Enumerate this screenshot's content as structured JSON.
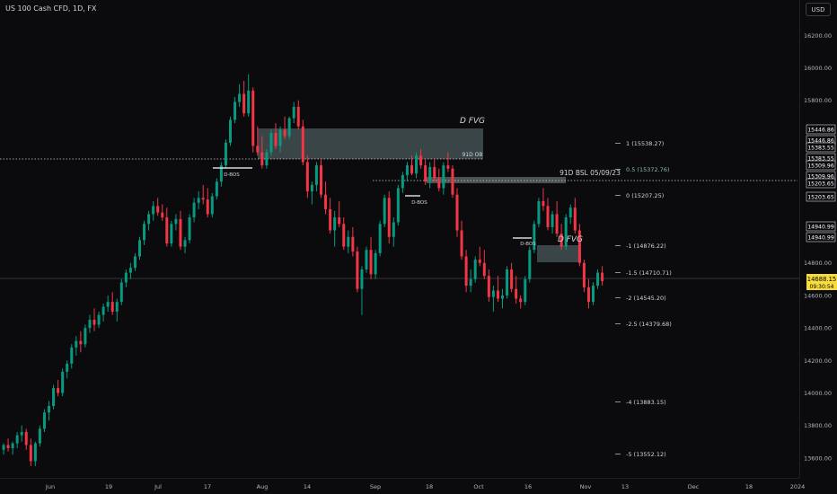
{
  "header": {
    "title": "US 100 Cash CFD, 1D, FX",
    "currency_button": "USD"
  },
  "chart_data": {
    "type": "candlestick",
    "ylim": [
      13500,
      16340
    ],
    "price_axis_ticks": [
      "16200.00",
      "16000.00",
      "15800.00",
      "14800.00",
      "14600.00",
      "14400.00",
      "14200.00",
      "14000.00",
      "13800.00",
      "13600.00"
    ],
    "time_axis_labels": [
      {
        "label": "Jun",
        "x": 0
      },
      {
        "label": "19",
        "x": 14
      },
      {
        "label": "Jul",
        "x": 24
      },
      {
        "label": "17",
        "x": 34
      },
      {
        "label": "Aug",
        "x": 45
      },
      {
        "label": "14",
        "x": 55
      },
      {
        "label": "Sep",
        "x": 67
      },
      {
        "label": "18",
        "x": 77
      },
      {
        "label": "Oct",
        "x": 86
      },
      {
        "label": "16",
        "x": 96
      },
      {
        "label": "Nov",
        "x": 108
      },
      {
        "label": "13",
        "x": 117
      },
      {
        "label": "Dec",
        "x": 127
      },
      {
        "label": "18",
        "x": 137
      },
      {
        "label": "2024",
        "x": 147
      }
    ],
    "candles": [
      [
        13650,
        13690,
        13620,
        13680
      ],
      [
        13680,
        13720,
        13640,
        13660
      ],
      [
        13660,
        13700,
        13620,
        13690
      ],
      [
        13690,
        13760,
        13660,
        13740
      ],
      [
        13740,
        13800,
        13700,
        13760
      ],
      [
        13760,
        13780,
        13650,
        13680
      ],
      [
        13680,
        13720,
        13550,
        13580
      ],
      [
        13580,
        13700,
        13550,
        13690
      ],
      [
        13690,
        13800,
        13670,
        13780
      ],
      [
        13780,
        13900,
        13760,
        13880
      ],
      [
        13880,
        13950,
        13830,
        13920
      ],
      [
        13920,
        14050,
        13900,
        14030
      ],
      [
        14030,
        14080,
        13980,
        14000
      ],
      [
        14000,
        14150,
        13980,
        14130
      ],
      [
        14130,
        14200,
        14090,
        14180
      ],
      [
        14180,
        14300,
        14150,
        14280
      ],
      [
        14280,
        14350,
        14230,
        14320
      ],
      [
        14320,
        14380,
        14250,
        14300
      ],
      [
        14300,
        14420,
        14280,
        14400
      ],
      [
        14400,
        14480,
        14370,
        14450
      ],
      [
        14450,
        14520,
        14380,
        14420
      ],
      [
        14420,
        14500,
        14400,
        14480
      ],
      [
        14480,
        14550,
        14440,
        14530
      ],
      [
        14530,
        14600,
        14500,
        14560
      ],
      [
        14560,
        14620,
        14480,
        14500
      ],
      [
        14500,
        14580,
        14440,
        14560
      ],
      [
        14560,
        14700,
        14540,
        14680
      ],
      [
        14680,
        14760,
        14650,
        14740
      ],
      [
        14740,
        14800,
        14700,
        14770
      ],
      [
        14770,
        14860,
        14750,
        14840
      ],
      [
        14840,
        14960,
        14820,
        14940
      ],
      [
        14940,
        15060,
        14910,
        15040
      ],
      [
        15040,
        15120,
        15000,
        15100
      ],
      [
        15100,
        15180,
        15060,
        15150
      ],
      [
        15150,
        15200,
        15090,
        15110
      ],
      [
        15110,
        15160,
        15060,
        15080
      ],
      [
        15080,
        15140,
        14900,
        14920
      ],
      [
        14920,
        15060,
        14900,
        15040
      ],
      [
        15040,
        15100,
        15000,
        15070
      ],
      [
        15070,
        15120,
        14880,
        14900
      ],
      [
        14900,
        14960,
        14860,
        14940
      ],
      [
        14940,
        15100,
        14920,
        15080
      ],
      [
        15080,
        15200,
        15050,
        15170
      ],
      [
        15170,
        15240,
        15130,
        15200
      ],
      [
        15200,
        15280,
        15160,
        15190
      ],
      [
        15190,
        15260,
        15080,
        15100
      ],
      [
        15100,
        15230,
        15080,
        15210
      ],
      [
        15210,
        15320,
        15190,
        15300
      ],
      [
        15300,
        15420,
        15270,
        15400
      ],
      [
        15400,
        15560,
        15380,
        15540
      ],
      [
        15540,
        15700,
        15520,
        15680
      ],
      [
        15680,
        15820,
        15660,
        15790
      ],
      [
        15790,
        15900,
        15760,
        15840
      ],
      [
        15840,
        15920,
        15700,
        15720
      ],
      [
        15720,
        15960,
        15700,
        15860
      ],
      [
        15860,
        15880,
        15480,
        15520
      ],
      [
        15520,
        15640,
        15460,
        15480
      ],
      [
        15480,
        15580,
        15380,
        15400
      ],
      [
        15400,
        15500,
        15380,
        15480
      ],
      [
        15480,
        15620,
        15460,
        15600
      ],
      [
        15600,
        15660,
        15500,
        15520
      ],
      [
        15520,
        15640,
        15480,
        15620
      ],
      [
        15620,
        15700,
        15560,
        15580
      ],
      [
        15580,
        15700,
        15560,
        15690
      ],
      [
        15690,
        15790,
        15660,
        15760
      ],
      [
        15760,
        15800,
        15620,
        15640
      ],
      [
        15640,
        15680,
        15400,
        15420
      ],
      [
        15420,
        15460,
        15200,
        15240
      ],
      [
        15240,
        15300,
        15160,
        15280
      ],
      [
        15280,
        15420,
        15240,
        15400
      ],
      [
        15400,
        15440,
        15200,
        15220
      ],
      [
        15220,
        15300,
        15100,
        15130
      ],
      [
        15130,
        15200,
        14980,
        15000
      ],
      [
        15000,
        15120,
        14900,
        15080
      ],
      [
        15080,
        15180,
        15020,
        15040
      ],
      [
        15040,
        15080,
        14880,
        14900
      ],
      [
        14900,
        15000,
        14860,
        14960
      ],
      [
        14960,
        15020,
        14840,
        14870
      ],
      [
        14870,
        14900,
        14620,
        14640
      ],
      [
        14640,
        14780,
        14480,
        14760
      ],
      [
        14760,
        14900,
        14740,
        14880
      ],
      [
        14880,
        14960,
        14700,
        14730
      ],
      [
        14730,
        14880,
        14700,
        14860
      ],
      [
        14860,
        15060,
        14840,
        15040
      ],
      [
        15040,
        15220,
        15020,
        15200
      ],
      [
        15200,
        15240,
        14920,
        14960
      ],
      [
        14960,
        15080,
        14900,
        15050
      ],
      [
        15050,
        15280,
        15030,
        15260
      ],
      [
        15260,
        15360,
        15230,
        15340
      ],
      [
        15340,
        15420,
        15300,
        15400
      ],
      [
        15400,
        15460,
        15340,
        15350
      ],
      [
        15350,
        15480,
        15320,
        15460
      ],
      [
        15460,
        15500,
        15380,
        15400
      ],
      [
        15400,
        15440,
        15280,
        15300
      ],
      [
        15300,
        15420,
        15260,
        15390
      ],
      [
        15390,
        15440,
        15300,
        15320
      ],
      [
        15320,
        15380,
        15240,
        15260
      ],
      [
        15260,
        15420,
        15220,
        15400
      ],
      [
        15400,
        15480,
        15360,
        15380
      ],
      [
        15380,
        15400,
        15200,
        15220
      ],
      [
        15220,
        15260,
        14960,
        15000
      ],
      [
        15000,
        15060,
        14820,
        14840
      ],
      [
        14840,
        14880,
        14620,
        14660
      ],
      [
        14660,
        14760,
        14620,
        14700
      ],
      [
        14700,
        14840,
        14680,
        14820
      ],
      [
        14820,
        14900,
        14780,
        14800
      ],
      [
        14800,
        14880,
        14700,
        14720
      ],
      [
        14720,
        14760,
        14560,
        14590
      ],
      [
        14590,
        14660,
        14500,
        14630
      ],
      [
        14630,
        14720,
        14560,
        14580
      ],
      [
        14580,
        14640,
        14520,
        14600
      ],
      [
        14600,
        14780,
        14580,
        14760
      ],
      [
        14760,
        14800,
        14620,
        14640
      ],
      [
        14640,
        14720,
        14550,
        14580
      ],
      [
        14580,
        14600,
        14520,
        14560
      ],
      [
        14560,
        14720,
        14540,
        14700
      ],
      [
        14700,
        14900,
        14680,
        14880
      ],
      [
        14880,
        15060,
        14860,
        15040
      ],
      [
        15040,
        15200,
        15020,
        15180
      ],
      [
        15180,
        15260,
        15120,
        15150
      ],
      [
        15150,
        15200,
        15000,
        15020
      ],
      [
        15020,
        15120,
        14980,
        15100
      ],
      [
        15100,
        15180,
        14960,
        14980
      ],
      [
        14980,
        15040,
        14880,
        14900
      ],
      [
        14900,
        15100,
        14880,
        15080
      ],
      [
        15080,
        15160,
        15040,
        15140
      ],
      [
        15140,
        15200,
        14980,
        15000
      ],
      [
        15000,
        15040,
        14780,
        14800
      ],
      [
        14800,
        14820,
        14620,
        14650
      ],
      [
        14650,
        14700,
        14520,
        14560
      ],
      [
        14560,
        14680,
        14540,
        14660
      ],
      [
        14660,
        14760,
        14640,
        14740
      ],
      [
        14740,
        14780,
        14660,
        14688
      ]
    ],
    "levels": [
      {
        "label": "1 (15538.27)",
        "value": 15538.27
      },
      {
        "label": "0.5 (15372.76)",
        "value": 15372.76
      },
      {
        "label": "0 (15207.25)",
        "value": 15207.25
      },
      {
        "label": "-1 (14876.22)",
        "value": 14876.22
      },
      {
        "label": "-1.5 (14710.71)",
        "value": 14710.71
      },
      {
        "label": "-2 (14545.20)",
        "value": 14545.2
      },
      {
        "label": "-2.5 (14379.68)",
        "value": 14379.68
      },
      {
        "label": "-4 (13883.15)",
        "value": 13883.15
      },
      {
        "label": "-5 (13552.12)",
        "value": 13552.12
      }
    ],
    "annotations": {
      "d_fvg": "D FVG",
      "ob_91d": "91D OB",
      "bsl": "91D BSL 05/09/23",
      "dbos": "D-BOS"
    },
    "price_tags": [
      {
        "value": 15446.86,
        "text": "15446.86"
      },
      {
        "value": 15383.55,
        "text": "15383.55"
      },
      {
        "value": 15309.96,
        "text": "15309.96"
      },
      {
        "value": 15203.65,
        "text": "15203.65"
      },
      {
        "value": 14940.99,
        "text": "14940.99"
      }
    ],
    "current_price": "14688.15",
    "countdown": "09:30:54",
    "colors": {
      "up": "#089981",
      "down": "#f23645",
      "zone": "#4b5a5c",
      "bg": "#0b0b0d"
    }
  }
}
